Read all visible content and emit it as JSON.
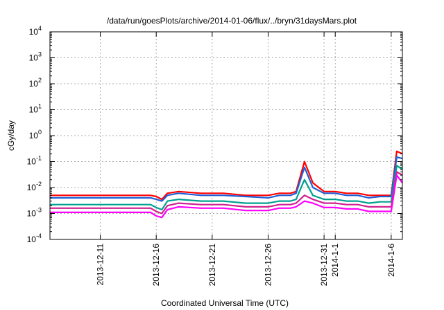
{
  "chart_data": {
    "type": "line",
    "title": "/data/run/goesPlots/archive/2014-01-06/flux/../bryn/31daysMars.plot",
    "xlabel": "Coordinated Universal Time (UTC)",
    "ylabel": "cGy/day",
    "xlim": [
      "2013-12-06T12:00",
      "2014-01-07T00:00"
    ],
    "ylim": [
      0.0001,
      10000
    ],
    "yscale": "log",
    "grid": true,
    "x_ticks": [
      {
        "date": "2013-12-11",
        "label": "2013-12-11"
      },
      {
        "date": "2013-12-16",
        "label": "2013-12-16"
      },
      {
        "date": "2013-12-21",
        "label": "2013-12-21"
      },
      {
        "date": "2013-12-26",
        "label": "2013-12-26"
      },
      {
        "date": "2013-12-31",
        "label": "2013-12-31"
      },
      {
        "date": "2014-01-01",
        "label": "2014-1-1"
      },
      {
        "date": "2014-01-06",
        "label": "2014-1-6"
      }
    ],
    "y_ticks": [
      {
        "value": 0.0001,
        "base": "10",
        "exp": "-4"
      },
      {
        "value": 0.001,
        "base": "10",
        "exp": "-3"
      },
      {
        "value": 0.01,
        "base": "10",
        "exp": "-2"
      },
      {
        "value": 0.1,
        "base": "10",
        "exp": "-1"
      },
      {
        "value": 1,
        "base": "10",
        "exp": "0"
      },
      {
        "value": 10,
        "base": "10",
        "exp": "1"
      },
      {
        "value": 100,
        "base": "10",
        "exp": "2"
      },
      {
        "value": 1000,
        "base": "10",
        "exp": "3"
      },
      {
        "value": 10000,
        "base": "10",
        "exp": "4"
      }
    ],
    "x": [
      "2013-12-06T12:00",
      "2013-12-08",
      "2013-12-10",
      "2013-12-12",
      "2013-12-14",
      "2013-12-15T12:00",
      "2013-12-16",
      "2013-12-16T12:00",
      "2013-12-17",
      "2013-12-18",
      "2013-12-20",
      "2013-12-22",
      "2013-12-24",
      "2013-12-26",
      "2013-12-27",
      "2013-12-28",
      "2013-12-28T12:00",
      "2013-12-29T06:00",
      "2013-12-30",
      "2013-12-31",
      "2014-01-01",
      "2014-01-02",
      "2014-01-03",
      "2014-01-04",
      "2014-01-05",
      "2014-01-06",
      "2014-01-06T12:00",
      "2014-01-07T00:00"
    ],
    "series": [
      {
        "color": "#ff0000",
        "values": [
          0.005,
          0.005,
          0.005,
          0.005,
          0.005,
          0.005,
          0.0045,
          0.0035,
          0.006,
          0.007,
          0.006,
          0.006,
          0.005,
          0.005,
          0.006,
          0.006,
          0.007,
          0.1,
          0.015,
          0.007,
          0.007,
          0.006,
          0.006,
          0.005,
          0.005,
          0.005,
          0.25,
          0.2
        ]
      },
      {
        "color": "#1e5fd8",
        "values": [
          0.004,
          0.004,
          0.004,
          0.004,
          0.004,
          0.004,
          0.0035,
          0.003,
          0.005,
          0.006,
          0.005,
          0.005,
          0.0045,
          0.004,
          0.005,
          0.005,
          0.006,
          0.06,
          0.01,
          0.006,
          0.006,
          0.005,
          0.005,
          0.004,
          0.0045,
          0.0045,
          0.15,
          0.13
        ]
      },
      {
        "color": "#00a090",
        "values": [
          0.0022,
          0.0022,
          0.0022,
          0.0022,
          0.0022,
          0.0022,
          0.0017,
          0.0014,
          0.003,
          0.0035,
          0.003,
          0.003,
          0.0025,
          0.0025,
          0.003,
          0.003,
          0.0035,
          0.02,
          0.005,
          0.0035,
          0.0035,
          0.003,
          0.003,
          0.0025,
          0.0028,
          0.0028,
          0.07,
          0.05
        ]
      },
      {
        "color": "#d02090",
        "values": [
          0.0016,
          0.0016,
          0.0016,
          0.0016,
          0.0016,
          0.0016,
          0.0012,
          0.001,
          0.002,
          0.0025,
          0.0022,
          0.0022,
          0.0018,
          0.0018,
          0.0022,
          0.0022,
          0.0025,
          0.005,
          0.0035,
          0.0025,
          0.0025,
          0.0022,
          0.0022,
          0.0018,
          0.0018,
          0.0018,
          0.04,
          0.03
        ]
      },
      {
        "color": "#ff00ff",
        "values": [
          0.0011,
          0.0011,
          0.0011,
          0.0011,
          0.0011,
          0.0011,
          0.0008,
          0.0007,
          0.0014,
          0.0018,
          0.0016,
          0.0016,
          0.0013,
          0.0013,
          0.0016,
          0.0016,
          0.0018,
          0.003,
          0.0025,
          0.0017,
          0.0017,
          0.0015,
          0.0015,
          0.0012,
          0.0012,
          0.0012,
          0.03,
          0.015
        ]
      }
    ]
  }
}
